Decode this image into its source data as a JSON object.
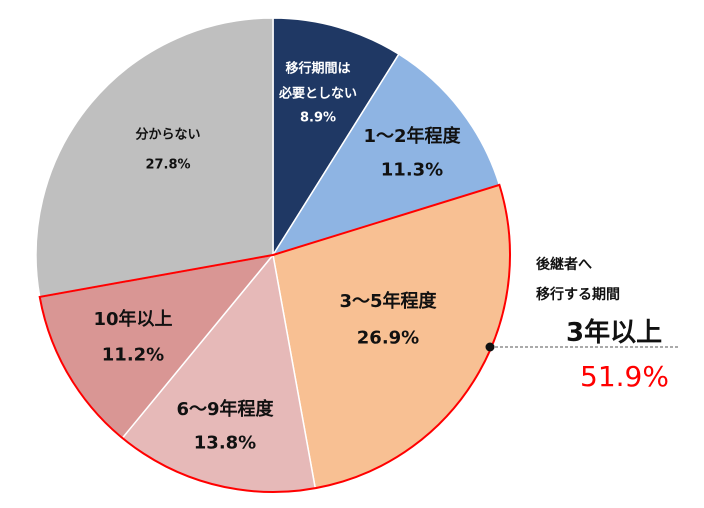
{
  "chart_data": {
    "type": "pie",
    "title": "",
    "slices": [
      {
        "label": "移行期間は必要としない",
        "label_lines": [
          "移行期間は",
          "必要としない"
        ],
        "value": 8.9,
        "value_label": "8.9%",
        "color": "#1f3864"
      },
      {
        "label": "1～2年程度",
        "label_lines": [
          "1～2年程度"
        ],
        "value": 11.3,
        "value_label": "11.3%",
        "color": "#8eb4e3"
      },
      {
        "label": "3～5年程度",
        "label_lines": [
          "3～5年程度"
        ],
        "value": 26.9,
        "value_label": "26.9%",
        "color": "#f8c093"
      },
      {
        "label": "6～9年程度",
        "label_lines": [
          "6～9年程度"
        ],
        "value": 13.8,
        "value_label": "13.8%",
        "color": "#e6b9b8"
      },
      {
        "label": "10年以上",
        "label_lines": [
          "10年以上"
        ],
        "value": 11.2,
        "value_label": "11.2%",
        "color": "#d99694"
      },
      {
        "label": "分からない",
        "label_lines": [
          "分からない"
        ],
        "value": 27.8,
        "value_label": "27.8%",
        "color": "#bfbfbf"
      }
    ],
    "highlight_group": {
      "slices": [
        2,
        3,
        4
      ],
      "outline_color": "#ff0000"
    },
    "annotation": {
      "line1": "後継者へ",
      "line2": "移行する期間",
      "title": "3年以上",
      "value": "51.9%",
      "value_color": "#ff0000"
    }
  }
}
